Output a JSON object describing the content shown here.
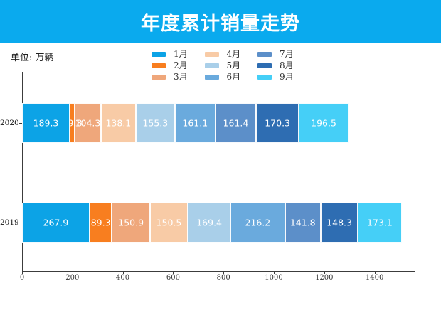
{
  "header": {
    "title": "年度累计销量走势",
    "bg_color": "#0AAAEE",
    "text_color": "#FFFFFF"
  },
  "unit_label": "单位: 万辆",
  "chart_data": {
    "type": "bar",
    "orientation": "horizontal",
    "stacked": true,
    "title": "年度累计销量走势",
    "unit": "万辆",
    "grid": false,
    "legend_position": "top-center, 3 columns",
    "categories": [
      "2020",
      "2019"
    ],
    "series": [
      {
        "name": "1月",
        "color": "#0CA3E6",
        "values": [
          189.3,
          267.9
        ]
      },
      {
        "name": "2月",
        "color": "#F87E1F",
        "values": [
          19.8,
          89.3
        ]
      },
      {
        "name": "3月",
        "color": "#EFA77B",
        "values": [
          104.3,
          150.9
        ]
      },
      {
        "name": "4月",
        "color": "#F8CBA6",
        "values": [
          138.1,
          150.5
        ]
      },
      {
        "name": "5月",
        "color": "#A9CFE9",
        "values": [
          155.3,
          169.4
        ]
      },
      {
        "name": "6月",
        "color": "#6AAADD",
        "values": [
          161.1,
          216.2
        ]
      },
      {
        "name": "7月",
        "color": "#5C8FC9",
        "values": [
          161.4,
          141.8
        ]
      },
      {
        "name": "8月",
        "color": "#2E6DB2",
        "values": [
          170.3,
          148.3
        ]
      },
      {
        "name": "9月",
        "color": "#45CFF7",
        "values": [
          196.5,
          173.1
        ]
      }
    ],
    "x_ticks": [
      0,
      200,
      400,
      600,
      800,
      1000,
      1200,
      1400
    ],
    "xlim": [
      0,
      1560
    ],
    "axis_color": "#3C3C3C",
    "value_label_color": "#FFFFFF"
  }
}
